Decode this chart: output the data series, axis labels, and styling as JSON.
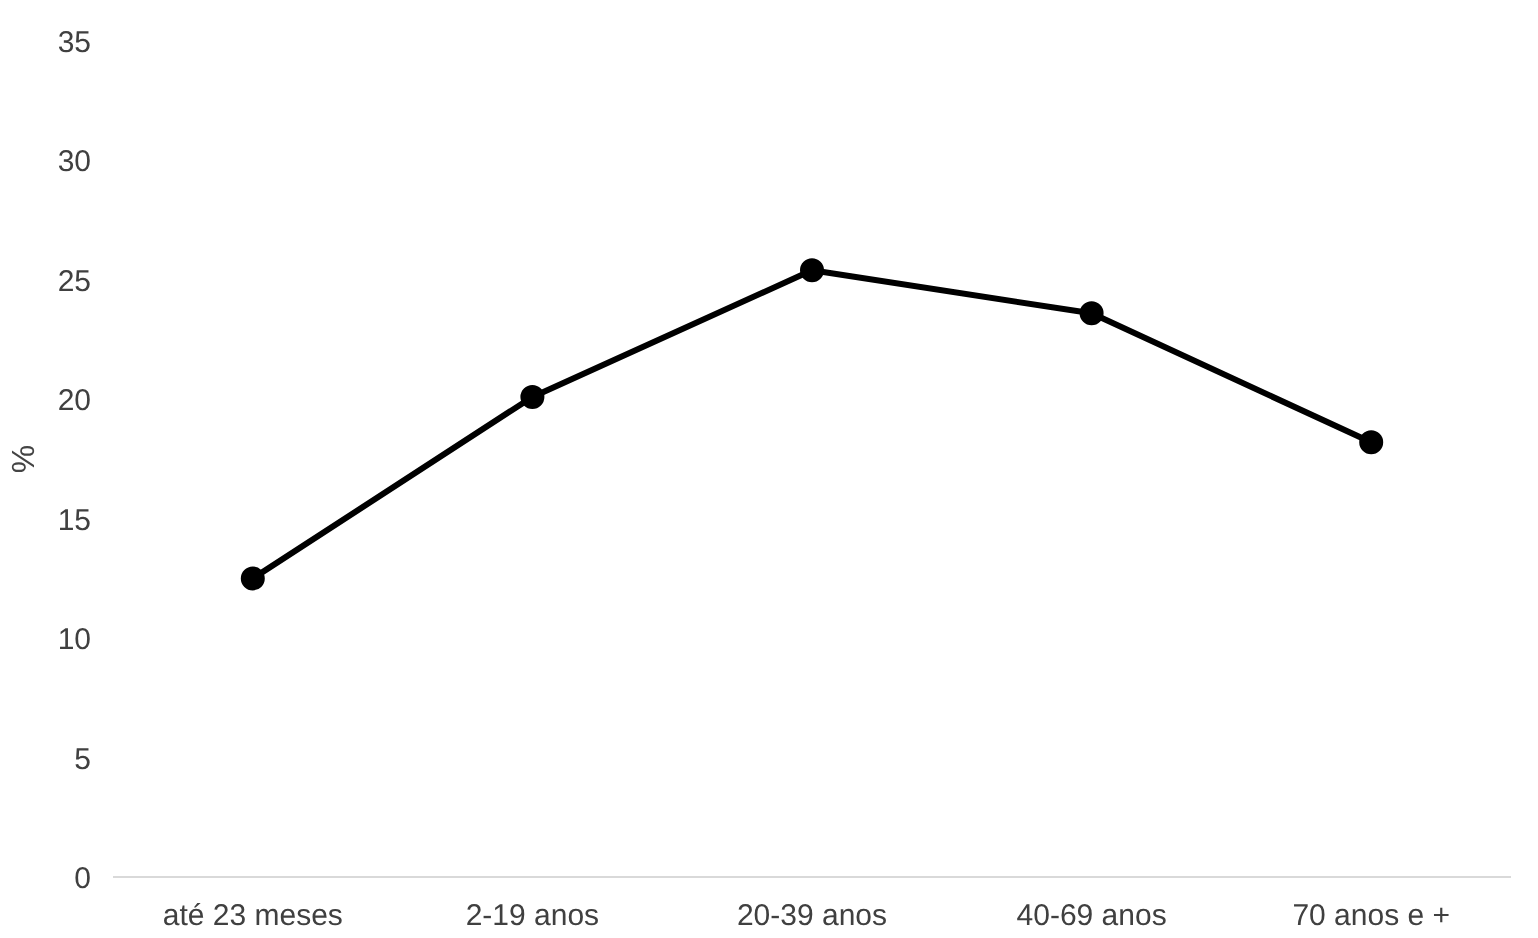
{
  "chart_data": {
    "type": "line",
    "ylabel": "%",
    "categories": [
      "até 23 meses",
      "2-19 anos",
      "20-39 anos",
      "40-69 anos",
      "70 anos e +"
    ],
    "series": [
      {
        "color": "#000000",
        "values": [
          12.5,
          20.1,
          25.4,
          23.6,
          18.2
        ]
      }
    ],
    "ylim": [
      0,
      35
    ],
    "yticks": [
      0,
      5,
      10,
      15,
      20,
      25,
      30,
      35
    ],
    "grid": false,
    "marker": "circle",
    "line_style": "solid"
  }
}
